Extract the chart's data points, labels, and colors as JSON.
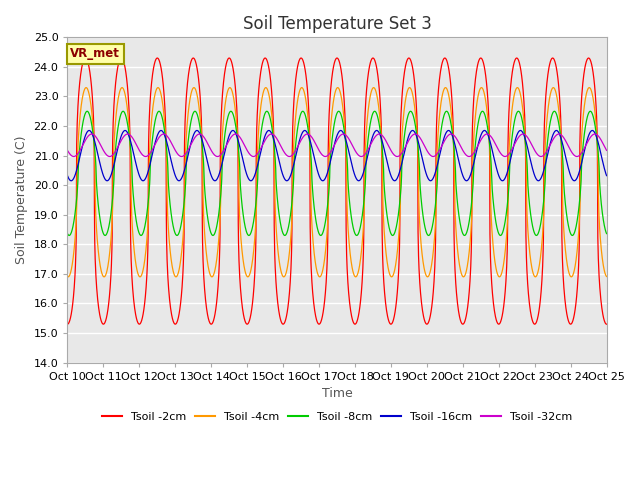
{
  "title": "Soil Temperature Set 3",
  "xlabel": "Time",
  "ylabel": "Soil Temperature (C)",
  "ylim": [
    14.0,
    25.0
  ],
  "yticks": [
    14.0,
    15.0,
    16.0,
    17.0,
    18.0,
    19.0,
    20.0,
    21.0,
    22.0,
    23.0,
    24.0,
    25.0
  ],
  "xtick_labels": [
    "Oct 10",
    "Oct 11",
    "Oct 12",
    "Oct 13",
    "Oct 14",
    "Oct 15",
    "Oct 16",
    "Oct 17",
    "Oct 18",
    "Oct 19",
    "Oct 20",
    "Oct 21",
    "Oct 22",
    "Oct 23",
    "Oct 24",
    "Oct 25"
  ],
  "lines": [
    {
      "label": "Tsoil -2cm",
      "color": "#ff0000",
      "amplitude": 4.5,
      "mean": 19.8,
      "phase": 0.0,
      "sharpness": 3.0
    },
    {
      "label": "Tsoil -4cm",
      "color": "#ff9900",
      "amplitude": 3.2,
      "mean": 20.1,
      "phase": 0.12,
      "sharpness": 2.0
    },
    {
      "label": "Tsoil -8cm",
      "color": "#00cc00",
      "amplitude": 2.1,
      "mean": 20.4,
      "phase": 0.3,
      "sharpness": 1.5
    },
    {
      "label": "Tsoil -16cm",
      "color": "#0000cc",
      "amplitude": 0.85,
      "mean": 21.0,
      "phase": 0.65,
      "sharpness": 1.0
    },
    {
      "label": "Tsoil -32cm",
      "color": "#cc00cc",
      "amplitude": 0.38,
      "mean": 21.35,
      "phase": 1.1,
      "sharpness": 1.0
    }
  ],
  "vr_met_label": "VR_met",
  "background_color": "#e8e8e8",
  "figure_background": "#ffffff",
  "title_fontsize": 12,
  "axis_label_fontsize": 9,
  "tick_fontsize": 8
}
